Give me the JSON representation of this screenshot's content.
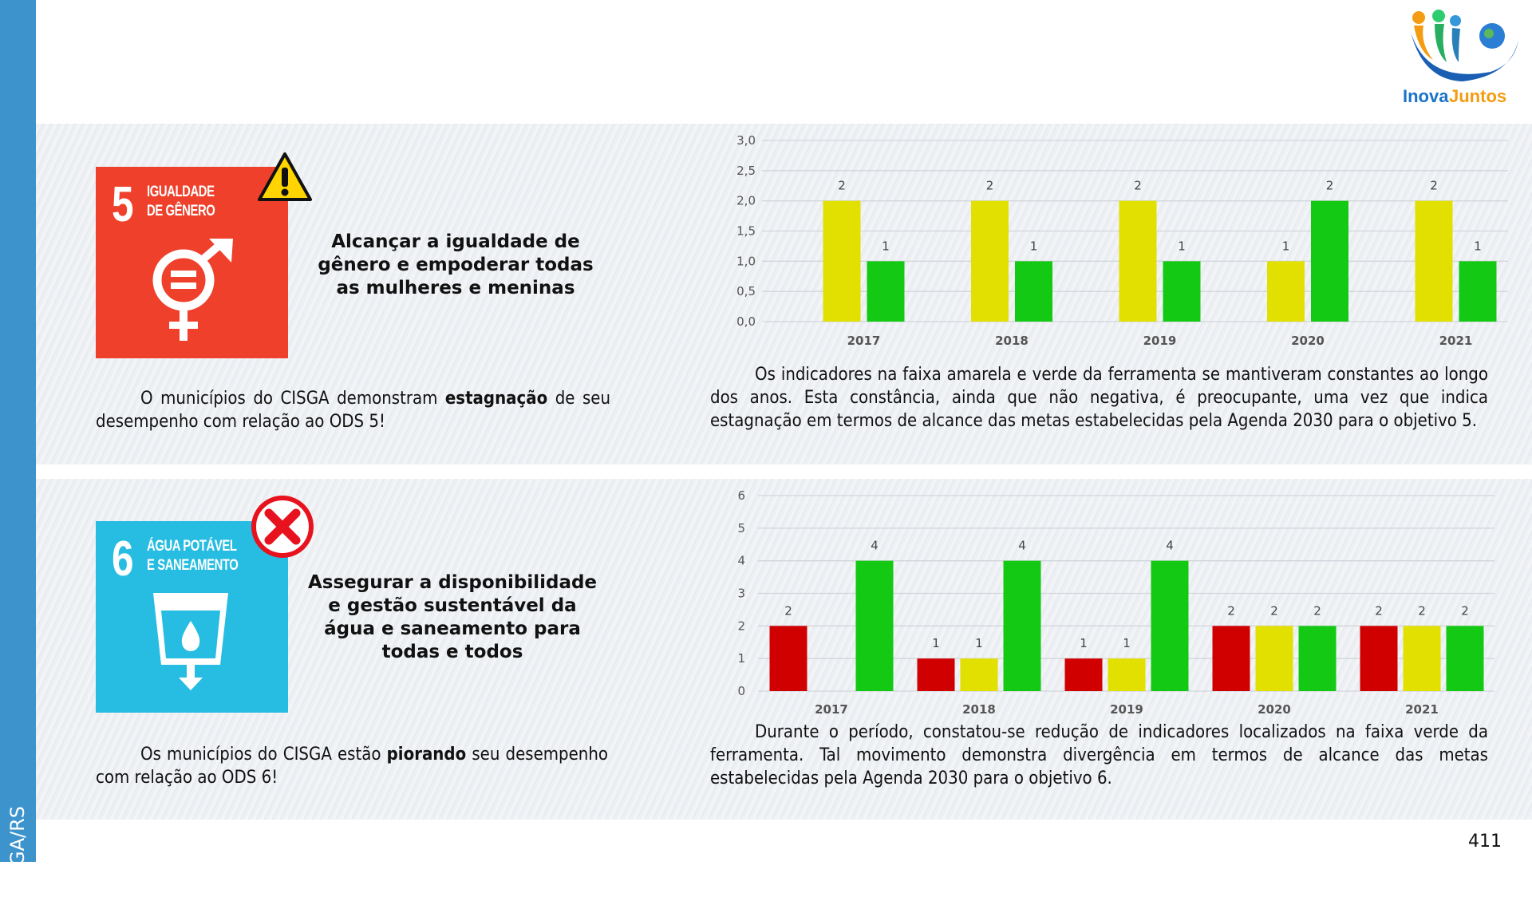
{
  "sidebar": {
    "label": "CISGA/RS"
  },
  "logo": {
    "text_part1": "Inova",
    "text_part2": "Juntos"
  },
  "page_number": "411",
  "section1": {
    "tile_number": "5",
    "tile_title_line1": "IGUALDADE",
    "tile_title_line2": "DE GÊNERO",
    "status_icon": "warning-icon",
    "heading": "Alcançar a igualdade de gênero e empoderar todas as mulheres e meninas",
    "summary_pre": "O municípios do CISGA demonstram ",
    "summary_bold": "estagnação",
    "summary_post": " de seu desempenho com relação ao ODS 5!",
    "analysis": "Os indicadores na faixa amarela e verde da ferramenta se mantiveram constantes ao longo dos anos. Esta constância, ainda que não negativa, é preocupante, uma vez que indica estagnação em termos de alcance das metas estabelecidas pela Agenda 2030 para o objetivo 5."
  },
  "section2": {
    "tile_number": "6",
    "tile_title_line1": "ÁGUA POTÁVEL",
    "tile_title_line2": "E SANEAMENTO",
    "status_icon": "error-x-icon",
    "heading": "Assegurar a disponibilidade e gestão sustentável da água e saneamento para todas e todos",
    "summary_pre": "Os municípios do CISGA estão ",
    "summary_bold": "piorando",
    "summary_post": " seu desempenho com relação ao ODS 6!",
    "analysis": "Durante o período, constatou-se redução de indicadores localizados na faixa verde da ferramenta. Tal movimento demonstra divergência em termos de alcance das metas estabelecidas pela Agenda 2030 para o objetivo 6."
  },
  "chart_data": [
    {
      "type": "bar",
      "title": "",
      "categories": [
        "2017",
        "2018",
        "2019",
        "2020",
        "2021"
      ],
      "yticks": [
        "0,0",
        "0,5",
        "1,0",
        "1,5",
        "2,0",
        "2,5",
        "3,0"
      ],
      "ylim": [
        0,
        3
      ],
      "grid": true,
      "series": [
        {
          "name": "Amarela",
          "color": "#e2e000",
          "values": [
            2,
            2,
            2,
            1,
            2
          ]
        },
        {
          "name": "Verde",
          "color": "#13c913",
          "values": [
            1,
            1,
            1,
            2,
            1
          ]
        }
      ]
    },
    {
      "type": "bar",
      "title": "",
      "categories": [
        "2017",
        "2018",
        "2019",
        "2020",
        "2021"
      ],
      "yticks": [
        "0",
        "1",
        "2",
        "3",
        "4",
        "5",
        "6"
      ],
      "ylim": [
        0,
        6
      ],
      "grid": true,
      "series": [
        {
          "name": "Vermelha",
          "color": "#d00000",
          "values": [
            2,
            1,
            1,
            2,
            2
          ]
        },
        {
          "name": "Amarela",
          "color": "#e2e000",
          "values": [
            0,
            1,
            1,
            2,
            2
          ]
        },
        {
          "name": "Verde",
          "color": "#13c913",
          "values": [
            4,
            4,
            4,
            2,
            2
          ]
        }
      ]
    }
  ]
}
